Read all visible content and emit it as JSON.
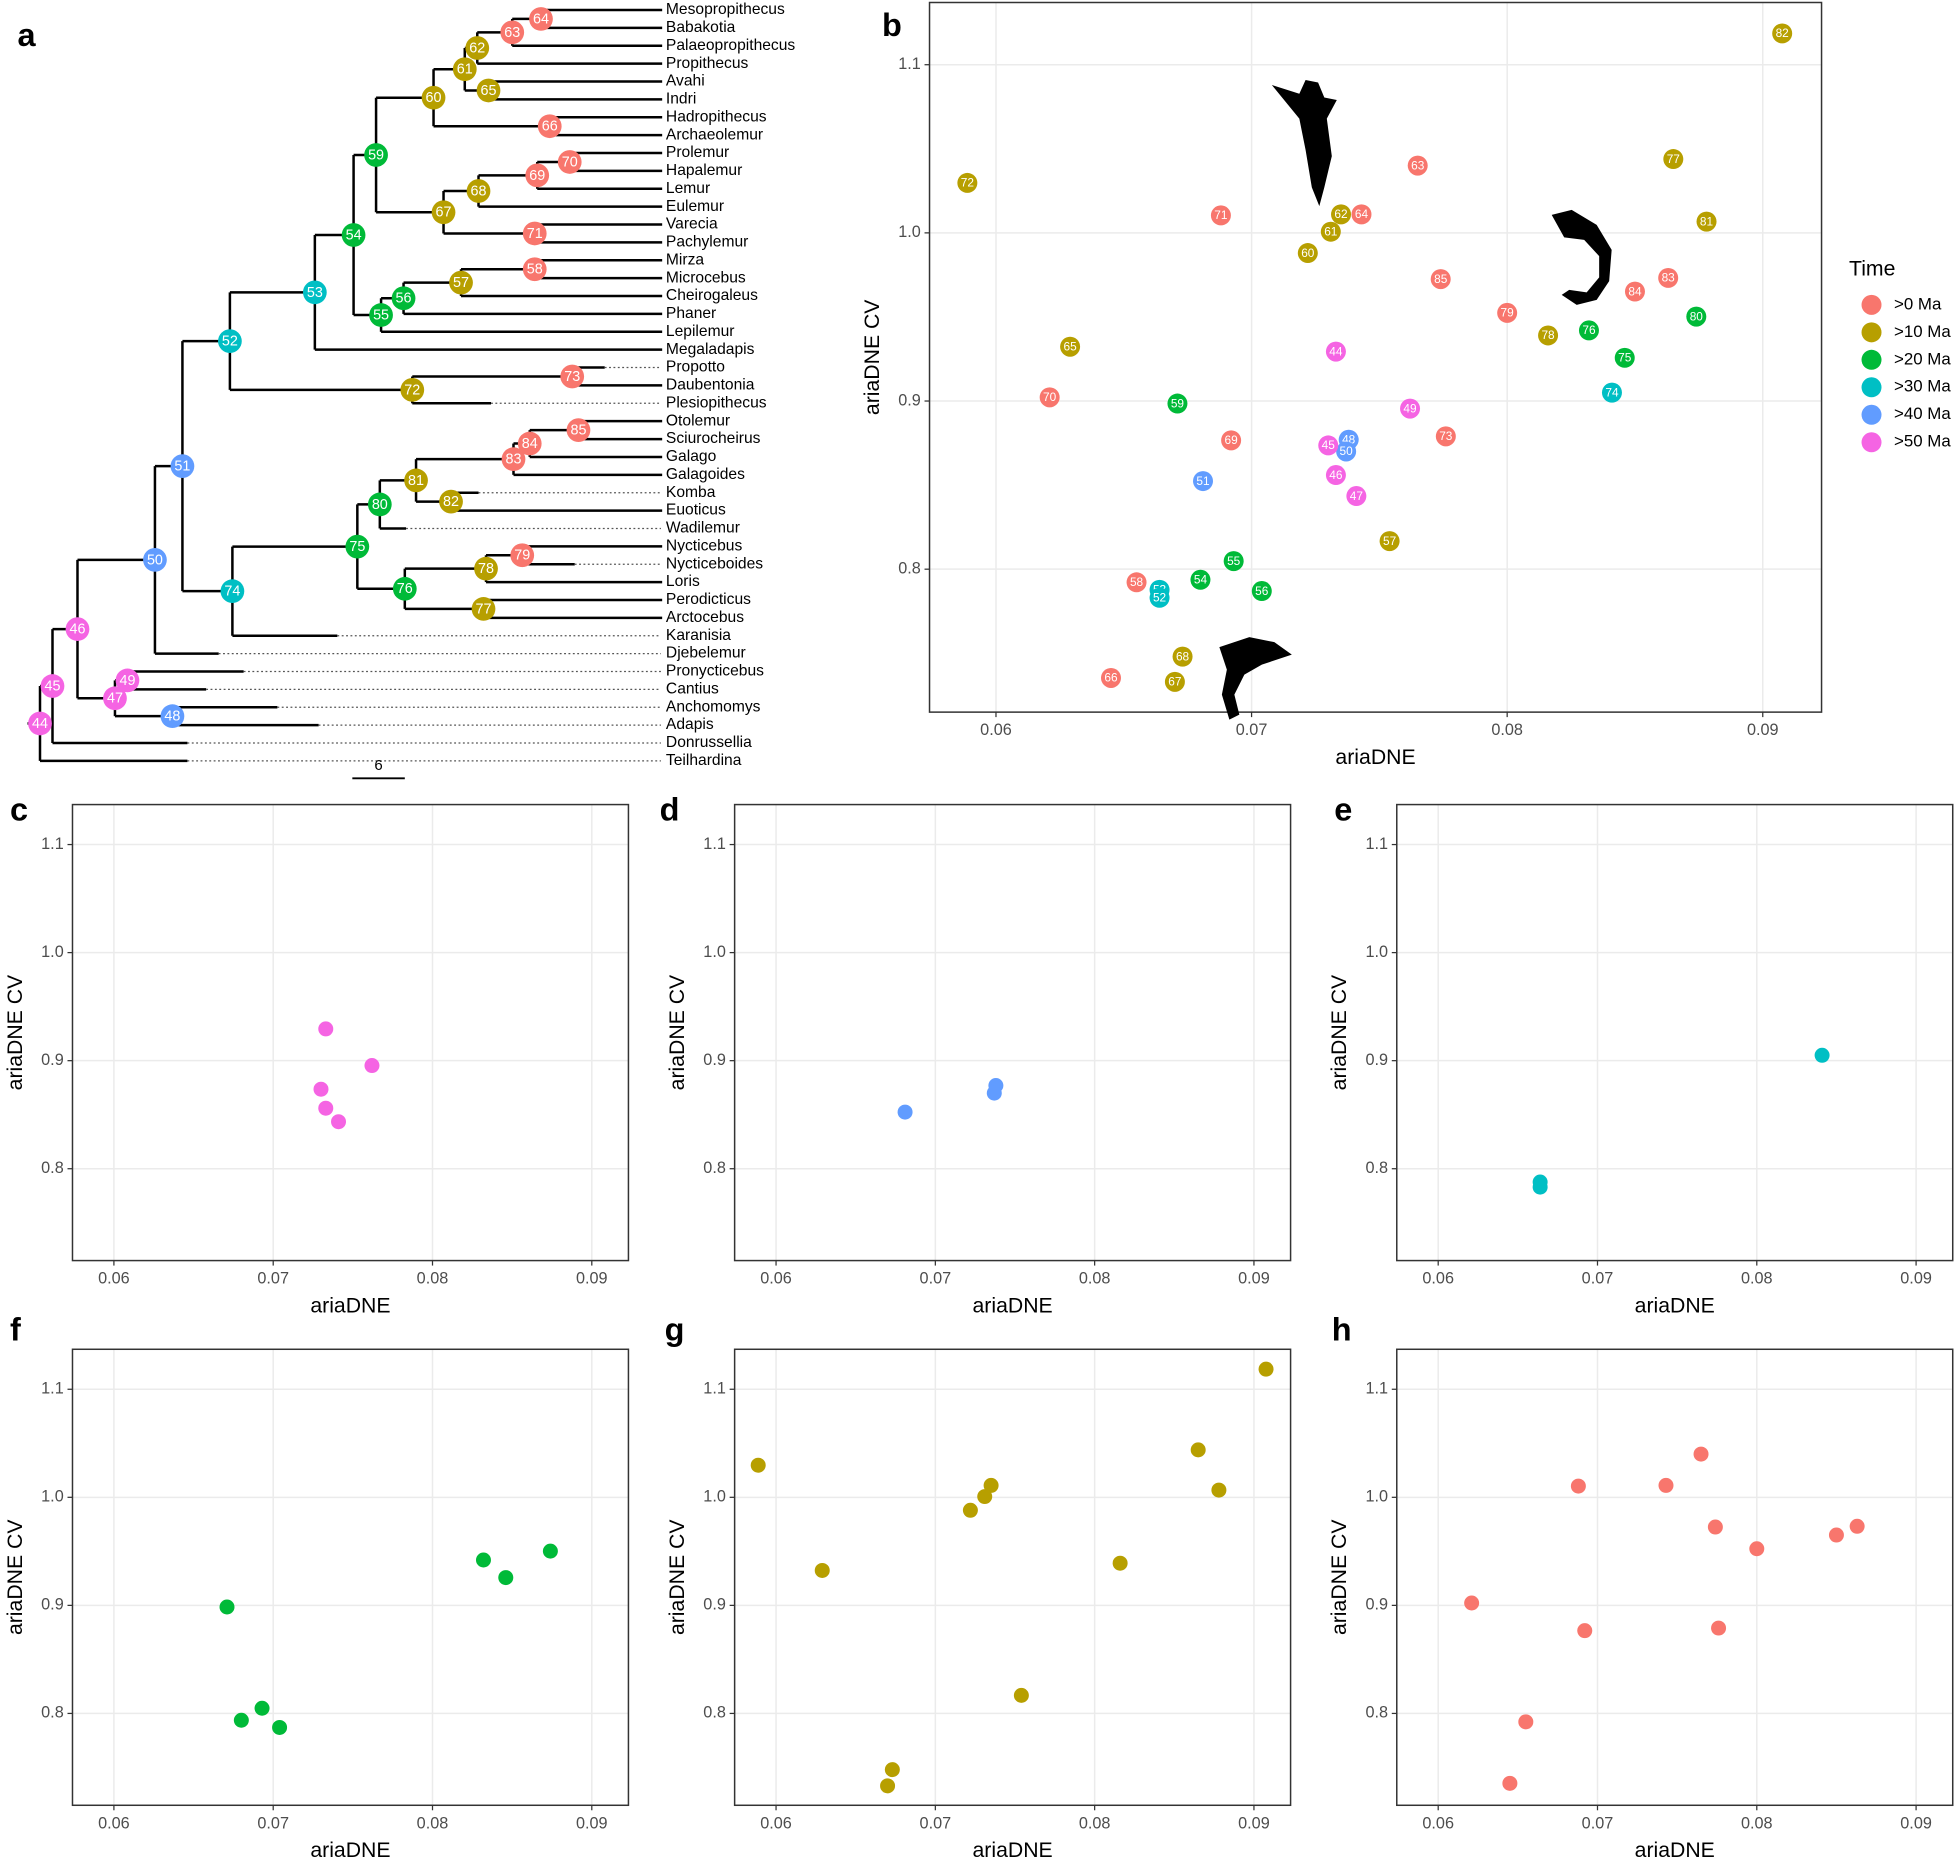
{
  "chart_data": [
    {
      "type": "tree",
      "panel": "a",
      "taxa": [
        "Mesopropithecus",
        "Babakotia",
        "Palaeopropithecus",
        "Propithecus",
        "Avahi",
        "Indri",
        "Hadropithecus",
        "Archaeolemur",
        "Prolemur",
        "Hapalemur",
        "Lemur",
        "Eulemur",
        "Varecia",
        "Pachylemur",
        "Mirza",
        "Microcebus",
        "Cheirogaleus",
        "Phaner",
        "Lepilemur",
        "Megaladapis",
        "Propotto",
        "Daubentonia",
        "Plesiopithecus",
        "Otolemur",
        "Sciurocheirus",
        "Galago",
        "Galagoides",
        "Komba",
        "Euoticus",
        "Wadilemur",
        "Nycticebus",
        "Nycticeboides",
        "Loris",
        "Perodicticus",
        "Arctocebus",
        "Karanisia",
        "Djebelemur",
        "Pronycticebus",
        "Cantius",
        "Anchomomys",
        "Adapis",
        "Donrussellia",
        "Teilhardina"
      ],
      "nodes": [
        {
          "label": 44,
          "time": ">50 Ma"
        },
        {
          "label": 45,
          "time": ">50 Ma"
        },
        {
          "label": 46,
          "time": ">50 Ma"
        },
        {
          "label": 47,
          "time": ">50 Ma"
        },
        {
          "label": 48,
          "time": ">40 Ma"
        },
        {
          "label": 49,
          "time": ">50 Ma"
        },
        {
          "label": 50,
          "time": ">40 Ma"
        },
        {
          "label": 51,
          "time": ">40 Ma"
        },
        {
          "label": 52,
          "time": ">30 Ma"
        },
        {
          "label": 53,
          "time": ">30 Ma"
        },
        {
          "label": 54,
          "time": ">20 Ma"
        },
        {
          "label": 55,
          "time": ">20 Ma"
        },
        {
          "label": 56,
          "time": ">20 Ma"
        },
        {
          "label": 57,
          "time": ">10 Ma"
        },
        {
          "label": 58,
          "time": ">0 Ma"
        },
        {
          "label": 59,
          "time": ">20 Ma"
        },
        {
          "label": 60,
          "time": ">10 Ma"
        },
        {
          "label": 61,
          "time": ">10 Ma"
        },
        {
          "label": 62,
          "time": ">10 Ma"
        },
        {
          "label": 63,
          "time": ">0 Ma"
        },
        {
          "label": 64,
          "time": ">0 Ma"
        },
        {
          "label": 65,
          "time": ">10 Ma"
        },
        {
          "label": 66,
          "time": ">0 Ma"
        },
        {
          "label": 67,
          "time": ">10 Ma"
        },
        {
          "label": 68,
          "time": ">10 Ma"
        },
        {
          "label": 69,
          "time": ">0 Ma"
        },
        {
          "label": 70,
          "time": ">0 Ma"
        },
        {
          "label": 71,
          "time": ">0 Ma"
        },
        {
          "label": 72,
          "time": ">10 Ma"
        },
        {
          "label": 73,
          "time": ">0 Ma"
        },
        {
          "label": 74,
          "time": ">30 Ma"
        },
        {
          "label": 75,
          "time": ">20 Ma"
        },
        {
          "label": 76,
          "time": ">20 Ma"
        },
        {
          "label": 77,
          "time": ">10 Ma"
        },
        {
          "label": 78,
          "time": ">10 Ma"
        },
        {
          "label": 79,
          "time": ">0 Ma"
        },
        {
          "label": 80,
          "time": ">20 Ma"
        },
        {
          "label": 81,
          "time": ">10 Ma"
        },
        {
          "label": 82,
          "time": ">10 Ma"
        },
        {
          "label": 83,
          "time": ">0 Ma"
        },
        {
          "label": 84,
          "time": ">0 Ma"
        },
        {
          "label": 85,
          "time": ">0 Ma"
        }
      ],
      "scale_bar": 6
    },
    {
      "type": "scatter",
      "panel": "b",
      "xlabel": "ariaDNE",
      "ylabel": "ariaDNE CV",
      "xlim": [
        0.0574,
        0.0923
      ],
      "ylim": [
        0.715,
        1.137
      ],
      "xticks": [
        0.06,
        0.07,
        0.08,
        0.09
      ],
      "yticks": [
        0.8,
        0.9,
        {
          "value": 1.0,
          "label": "1.0"
        },
        1.1
      ],
      "grid": true,
      "legend": "right",
      "legend_title": "Time",
      "series": [
        {
          "name": ">0 Ma",
          "color": "#F8766D",
          "x": [
            0.0765,
            0.0688,
            0.0743,
            0.0774,
            0.0863,
            0.085,
            0.08,
            0.0621,
            0.0692,
            0.0776,
            0.0655,
            0.0645
          ],
          "y": [
            1.04,
            1.0104,
            1.011,
            0.9725,
            0.9732,
            0.9651,
            0.9524,
            0.9022,
            0.8766,
            0.879,
            0.7922,
            0.7353
          ],
          "point_labels": [
            63,
            71,
            64,
            85,
            83,
            84,
            79,
            70,
            69,
            73,
            58,
            66
          ]
        },
        {
          "name": ">10 Ma",
          "color": "#B79F00",
          "x": [
            0.09076,
            0.05888,
            0.0865,
            0.0735,
            0.0731,
            0.0878,
            0.0722,
            0.0816,
            0.0629,
            0.0754,
            0.0673,
            0.067
          ],
          "y": [
            1.1186,
            1.0297,
            1.0439,
            1.011,
            1.0007,
            1.0067,
            0.988,
            0.939,
            0.9323,
            0.8167,
            0.748,
            0.733
          ],
          "point_labels": [
            82,
            72,
            77,
            62,
            61,
            81,
            60,
            78,
            65,
            57,
            68,
            67
          ]
        },
        {
          "name": ">20 Ma",
          "color": "#00BA38",
          "x": [
            0.0874,
            0.0832,
            0.0846,
            0.0671,
            0.0693,
            0.068,
            0.0704
          ],
          "y": [
            0.9502,
            0.942,
            0.9257,
            0.8985,
            0.8048,
            0.7937,
            0.787
          ],
          "point_labels": [
            80,
            76,
            75,
            59,
            55,
            54,
            56
          ]
        },
        {
          "name": ">30 Ma",
          "color": "#00BFC4",
          "x": [
            0.0841,
            0.0664,
            0.0664
          ],
          "y": [
            0.905,
            0.7877,
            0.783
          ],
          "point_labels": [
            74,
            53,
            52
          ]
        },
        {
          "name": ">40 Ma",
          "color": "#619CFF",
          "x": [
            0.0738,
            0.0737,
            0.0681
          ],
          "y": [
            0.877,
            0.87,
            0.8524
          ],
          "point_labels": [
            48,
            50,
            51
          ]
        },
        {
          "name": ">50 Ma",
          "color": "#F564E3",
          "x": [
            0.0733,
            0.0762,
            0.073,
            0.0733,
            0.0741
          ],
          "y": [
            0.9294,
            0.8955,
            0.8736,
            0.856,
            0.8435
          ],
          "point_labels": [
            44,
            49,
            45,
            46,
            47
          ]
        }
      ]
    },
    {
      "type": "scatter",
      "panel": "c",
      "xlabel": "ariaDNE",
      "ylabel": "ariaDNE CV",
      "xlim": [
        0.0574,
        0.0923
      ],
      "ylim": [
        0.715,
        1.137
      ],
      "xticks": [
        0.06,
        0.07,
        0.08,
        0.09
      ],
      "yticks": [
        0.8,
        0.9,
        {
          "value": 1.0,
          "label": "1.0"
        },
        1.1
      ],
      "grid": true,
      "series": [
        {
          "color": "#F564E3",
          "x": [
            0.0733,
            0.0762,
            0.073,
            0.0733,
            0.0741
          ],
          "y": [
            0.9294,
            0.8955,
            0.8736,
            0.856,
            0.8435
          ]
        }
      ]
    },
    {
      "type": "scatter",
      "panel": "d",
      "xlabel": "ariaDNE",
      "ylabel": "ariaDNE CV",
      "xlim": [
        0.0574,
        0.0923
      ],
      "ylim": [
        0.715,
        1.137
      ],
      "xticks": [
        0.06,
        0.07,
        0.08,
        0.09
      ],
      "yticks": [
        0.8,
        0.9,
        {
          "value": 1.0,
          "label": "1.0"
        },
        1.1
      ],
      "grid": true,
      "series": [
        {
          "color": "#619CFF",
          "x": [
            0.0738,
            0.0737,
            0.0681
          ],
          "y": [
            0.877,
            0.87,
            0.8524
          ]
        }
      ]
    },
    {
      "type": "scatter",
      "panel": "e",
      "xlabel": "ariaDNE",
      "ylabel": "ariaDNE CV",
      "xlim": [
        0.0574,
        0.0923
      ],
      "ylim": [
        0.715,
        1.137
      ],
      "xticks": [
        0.06,
        0.07,
        0.08,
        0.09
      ],
      "yticks": [
        0.8,
        0.9,
        {
          "value": 1.0,
          "label": "1.0"
        },
        1.1
      ],
      "grid": true,
      "series": [
        {
          "color": "#00BFC4",
          "x": [
            0.0841,
            0.0664,
            0.0664
          ],
          "y": [
            0.905,
            0.7877,
            0.783
          ]
        }
      ]
    },
    {
      "type": "scatter",
      "panel": "f",
      "xlabel": "ariaDNE",
      "ylabel": "ariaDNE CV",
      "xlim": [
        0.0574,
        0.0923
      ],
      "ylim": [
        0.715,
        1.137
      ],
      "xticks": [
        0.06,
        0.07,
        0.08,
        0.09
      ],
      "yticks": [
        0.8,
        0.9,
        {
          "value": 1.0,
          "label": "1.0"
        },
        1.1
      ],
      "grid": true,
      "series": [
        {
          "color": "#00BA38",
          "x": [
            0.0874,
            0.0832,
            0.0846,
            0.0671,
            0.0693,
            0.068,
            0.0704
          ],
          "y": [
            0.9502,
            0.942,
            0.9257,
            0.8985,
            0.8048,
            0.7937,
            0.787
          ]
        }
      ]
    },
    {
      "type": "scatter",
      "panel": "g",
      "xlabel": "ariaDNE",
      "ylabel": "ariaDNE CV",
      "xlim": [
        0.0574,
        0.0923
      ],
      "ylim": [
        0.715,
        1.137
      ],
      "xticks": [
        0.06,
        0.07,
        0.08,
        0.09
      ],
      "yticks": [
        0.8,
        0.9,
        {
          "value": 1.0,
          "label": "1.0"
        },
        1.1
      ],
      "grid": true,
      "series": [
        {
          "color": "#B79F00",
          "x": [
            0.09076,
            0.05888,
            0.0865,
            0.0735,
            0.0731,
            0.0878,
            0.0722,
            0.0816,
            0.0629,
            0.0754,
            0.0673,
            0.067
          ],
          "y": [
            1.1186,
            1.0297,
            1.0439,
            1.011,
            1.0007,
            1.0067,
            0.988,
            0.939,
            0.9323,
            0.8167,
            0.748,
            0.733
          ]
        }
      ]
    },
    {
      "type": "scatter",
      "panel": "h",
      "xlabel": "ariaDNE",
      "ylabel": "ariaDNE CV",
      "xlim": [
        0.0574,
        0.0923
      ],
      "ylim": [
        0.715,
        1.137
      ],
      "xticks": [
        0.06,
        0.07,
        0.08,
        0.09
      ],
      "yticks": [
        0.8,
        0.9,
        {
          "value": 1.0,
          "label": "1.0"
        },
        1.1
      ],
      "grid": true,
      "series": [
        {
          "color": "#F8766D",
          "x": [
            0.0765,
            0.0688,
            0.0743,
            0.0774,
            0.0863,
            0.085,
            0.08,
            0.0621,
            0.0692,
            0.0776,
            0.0655,
            0.0645
          ],
          "y": [
            1.04,
            1.0104,
            1.011,
            0.9725,
            0.9732,
            0.9651,
            0.9524,
            0.9022,
            0.8766,
            0.879,
            0.7922,
            0.7353
          ]
        }
      ]
    }
  ]
}
